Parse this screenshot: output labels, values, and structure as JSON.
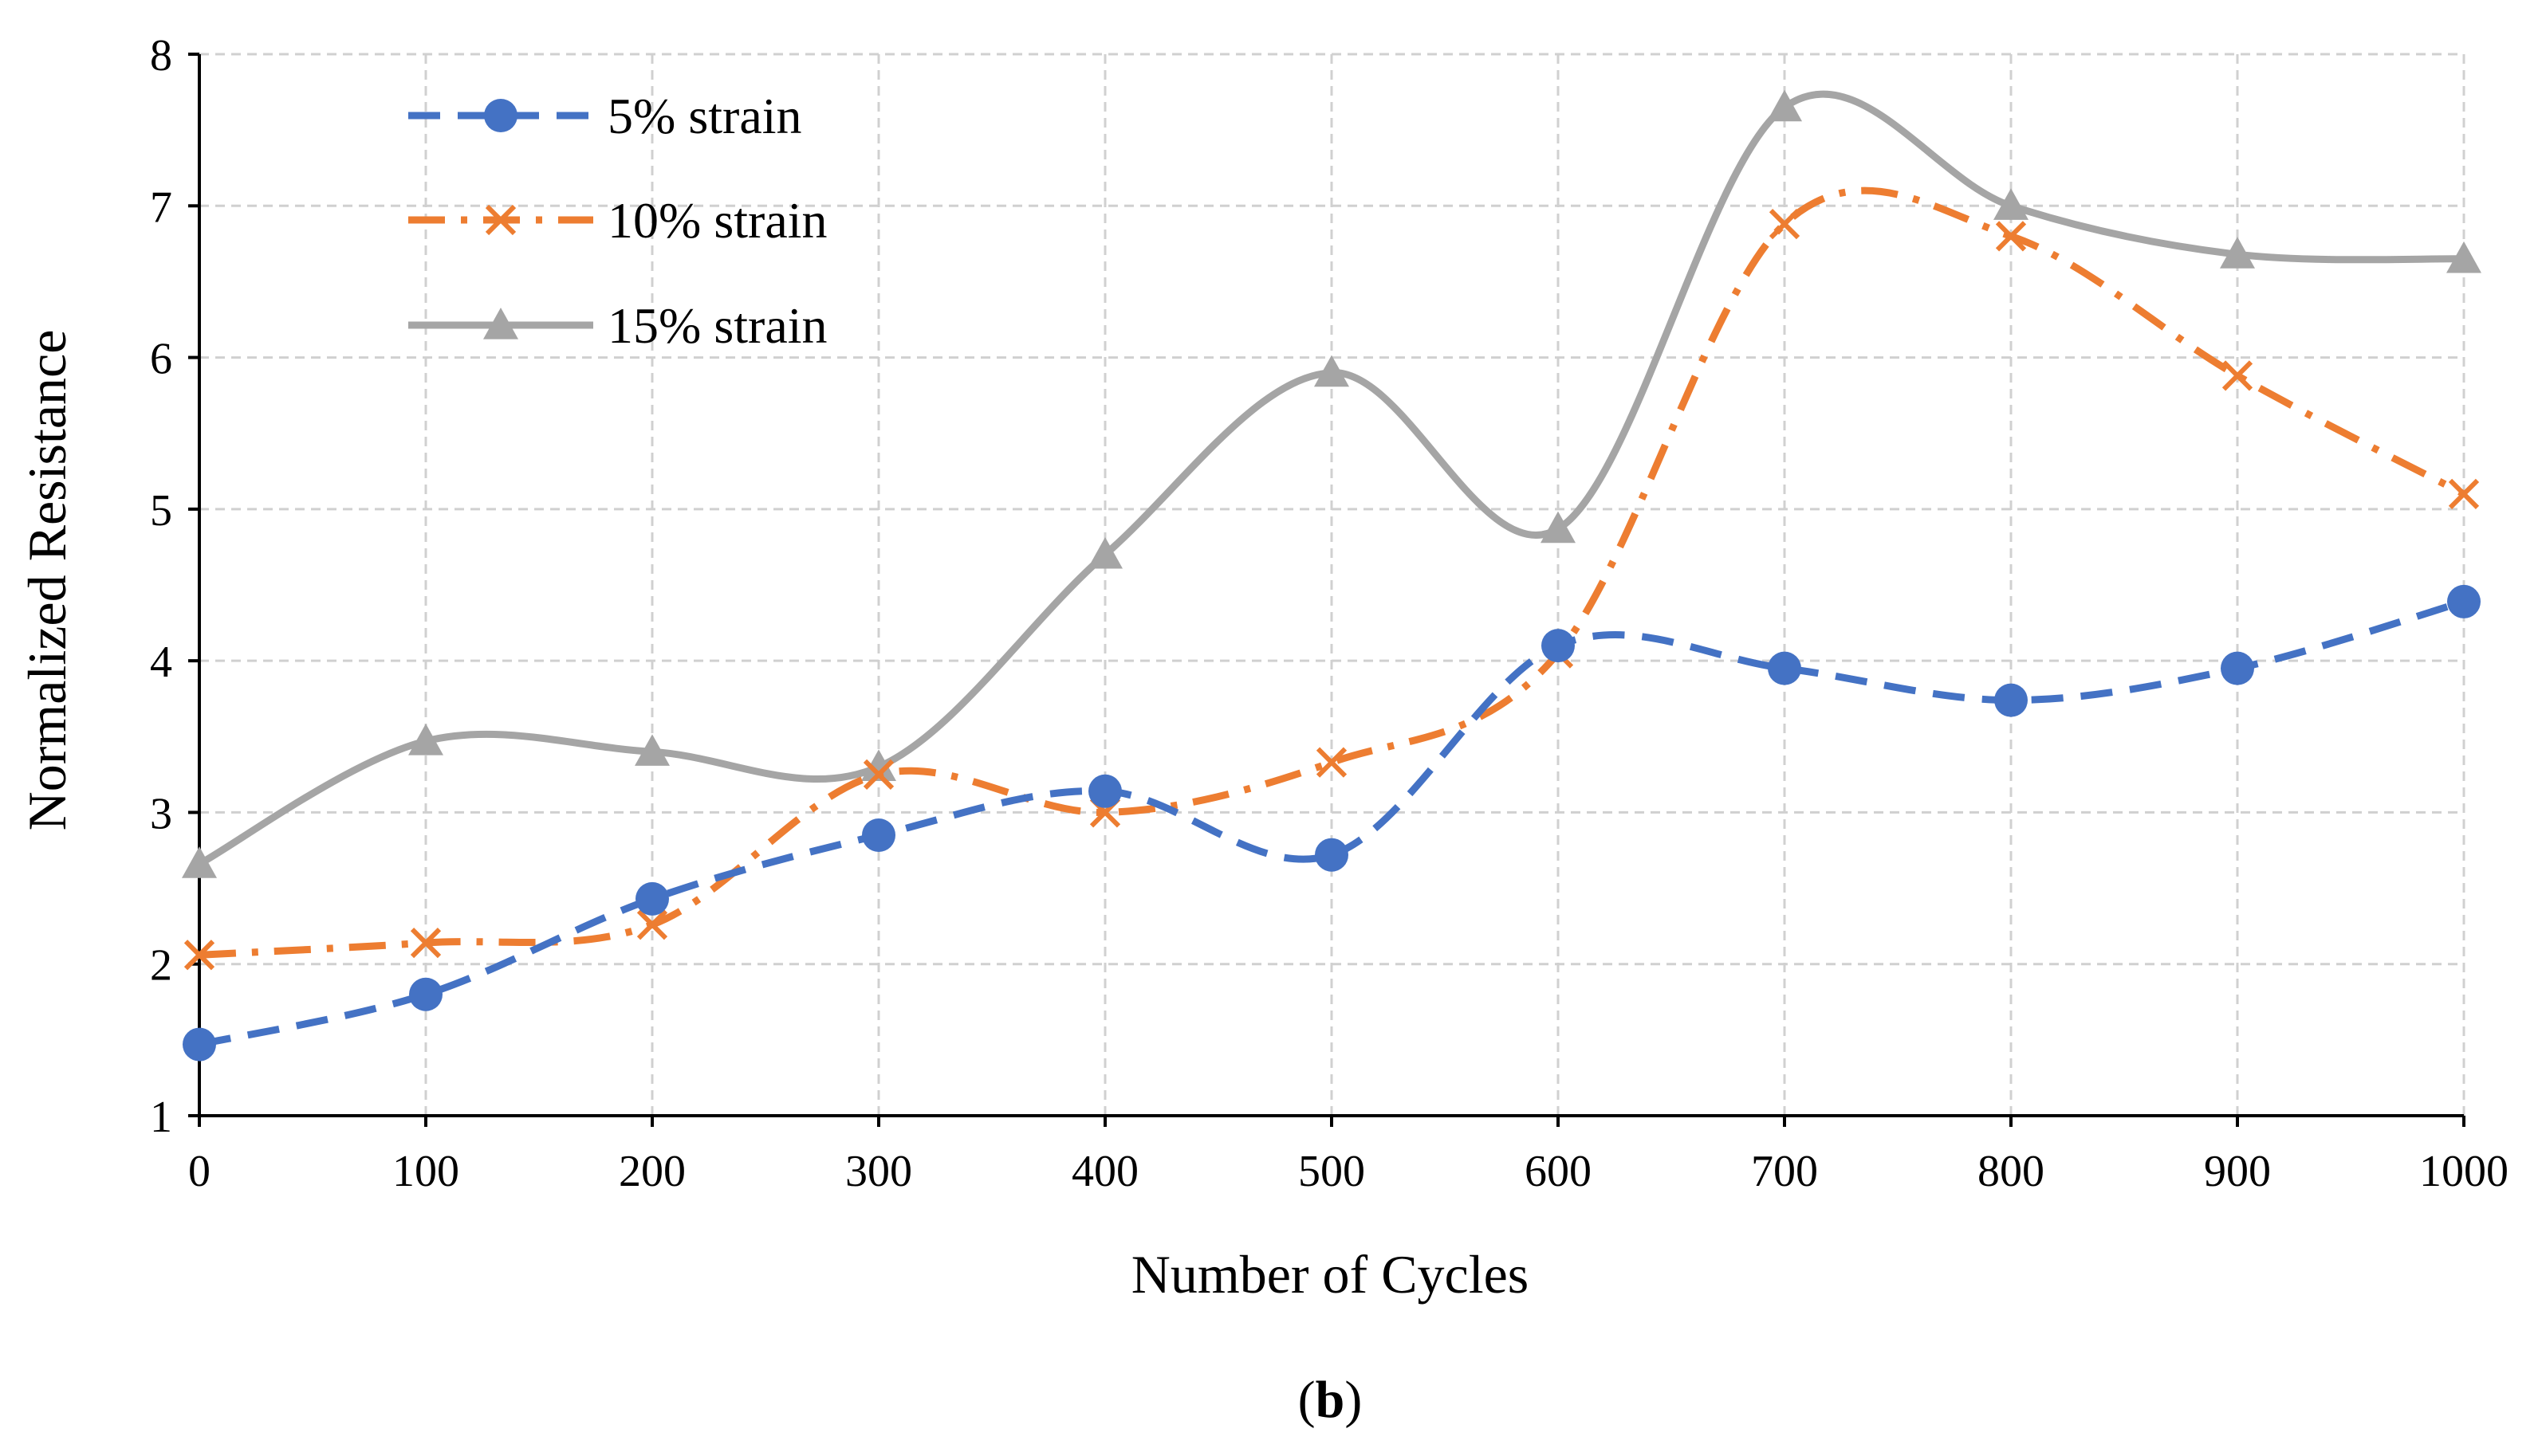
{
  "chart_data": {
    "type": "line",
    "title": "",
    "xlabel": "Number of Cycles",
    "ylabel": "Normalized Resistance",
    "x": [
      0,
      100,
      200,
      300,
      400,
      500,
      600,
      700,
      800,
      900,
      1000
    ],
    "x_ticks": [
      "0",
      "100",
      "200",
      "300",
      "400",
      "500",
      "600",
      "700",
      "800",
      "900",
      "1000"
    ],
    "y_ticks": [
      "1",
      "2",
      "3",
      "4",
      "5",
      "6",
      "7",
      "8"
    ],
    "xlim": [
      0,
      1000
    ],
    "ylim": [
      1,
      8
    ],
    "grid": true,
    "legend_position": "top-left",
    "series": [
      {
        "name": "5% strain",
        "values": [
          1.47,
          1.8,
          2.43,
          2.85,
          3.14,
          2.72,
          4.1,
          3.95,
          3.74,
          3.95,
          4.39
        ],
        "color": "#4472C4",
        "marker": "circle",
        "line": "dashed"
      },
      {
        "name": "10% strain",
        "values": [
          2.06,
          2.14,
          2.26,
          3.25,
          3.0,
          3.33,
          4.05,
          6.88,
          6.8,
          5.88,
          5.1
        ],
        "color": "#ED7D31",
        "marker": "x",
        "line": "dash-dot"
      },
      {
        "name": "15% strain",
        "values": [
          2.66,
          3.47,
          3.4,
          3.3,
          4.7,
          5.9,
          4.87,
          7.65,
          7.0,
          6.68,
          6.65
        ],
        "color": "#A5A5A5",
        "marker": "triangle",
        "line": "solid"
      }
    ]
  },
  "caption": {
    "open": "(",
    "letter": "b",
    "close": ")"
  }
}
